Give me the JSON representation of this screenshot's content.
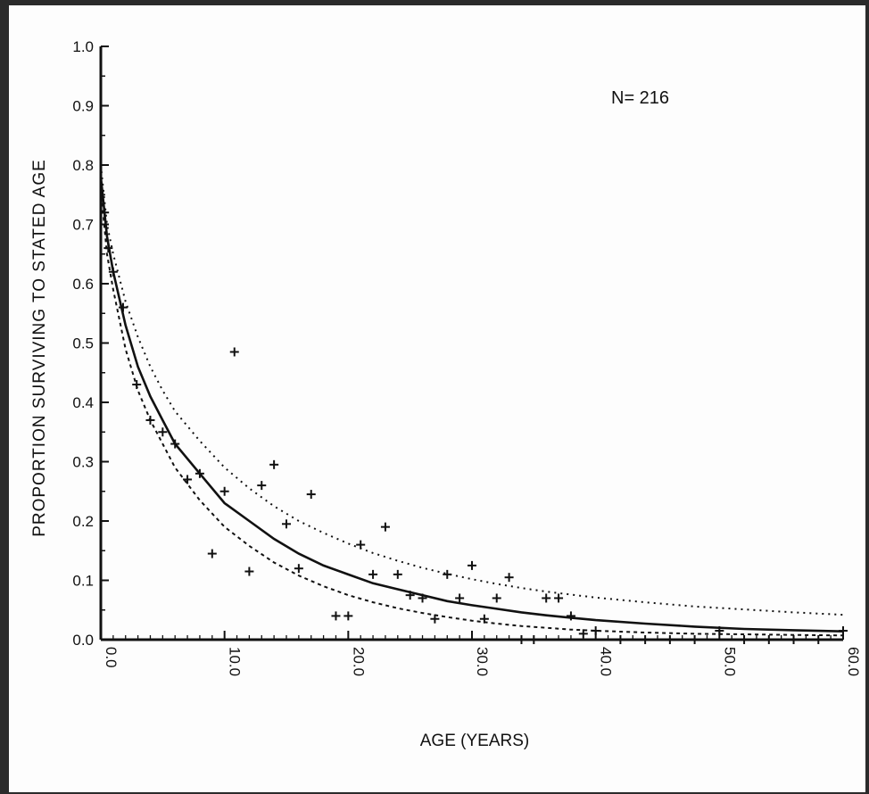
{
  "chart_data": {
    "type": "scatter",
    "title": "",
    "xlabel": "AGE (YEARS)",
    "ylabel": "PROPORTION SURVIVING TO STATED AGE",
    "annotation": "N= 216",
    "xlim": [
      0,
      60
    ],
    "ylim": [
      0,
      1.0
    ],
    "x_ticks": [
      "0.0",
      "10.0",
      "20.0",
      "30.0",
      "40.0",
      "50.0",
      "60.0"
    ],
    "y_ticks": [
      "0.0",
      "0.1",
      "0.2",
      "0.3",
      "0.4",
      "0.5",
      "0.6",
      "0.7",
      "0.8",
      "0.9",
      "1.0"
    ],
    "grid": false,
    "legend": "none",
    "series": [
      {
        "kind": "points",
        "x": [
          0.3,
          0.6,
          1.0,
          1.8,
          2.9,
          4.0,
          5.0,
          6.0,
          7.0,
          8.0,
          9.0,
          10.0,
          10.8,
          12.0,
          13.0,
          14.0,
          15.0,
          16.0,
          17.0,
          19.0,
          20.0,
          21.0,
          22.0,
          23.0,
          24.0,
          25.0,
          26.0,
          27.0,
          28.0,
          29.0,
          30.0,
          31.0,
          32.0,
          33.0,
          34.0,
          35.0,
          36.0,
          37.0,
          38.0,
          39.0,
          40.0,
          42.0,
          44.0,
          46.0,
          48.0,
          50.0,
          52.0,
          54.0,
          56.0,
          58.0,
          60.0
        ],
        "y": [
          0.72,
          0.66,
          0.62,
          0.56,
          0.43,
          0.37,
          0.35,
          0.33,
          0.27,
          0.28,
          0.145,
          0.25,
          0.485,
          0.115,
          0.26,
          0.295,
          0.195,
          0.12,
          0.245,
          0.04,
          0.04,
          0.16,
          0.11,
          0.19,
          0.11,
          0.075,
          0.07,
          0.035,
          0.11,
          0.07,
          0.125,
          0.035,
          0.07,
          0.105,
          0.0,
          0.0,
          0.07,
          0.07,
          0.04,
          0.01,
          0.015,
          0.0,
          0.0,
          0.0,
          0.0,
          0.015,
          0.0,
          0.0,
          0.0,
          0.0,
          0.015
        ]
      },
      {
        "kind": "fitted-curve",
        "style": "solid",
        "x": [
          0,
          0.5,
          1,
          2,
          3,
          4,
          5,
          6,
          8,
          10,
          12,
          14,
          16,
          18,
          20,
          22,
          24,
          26,
          28,
          30,
          32,
          34,
          36,
          38,
          40,
          44,
          48,
          52,
          56,
          60
        ],
        "y": [
          0.78,
          0.68,
          0.62,
          0.53,
          0.46,
          0.41,
          0.37,
          0.33,
          0.28,
          0.23,
          0.2,
          0.17,
          0.145,
          0.125,
          0.11,
          0.095,
          0.085,
          0.075,
          0.065,
          0.058,
          0.052,
          0.046,
          0.041,
          0.037,
          0.033,
          0.027,
          0.022,
          0.018,
          0.016,
          0.014
        ]
      },
      {
        "kind": "upper-bound",
        "style": "dotted",
        "x": [
          0,
          0.5,
          1,
          2,
          3,
          4,
          5,
          6,
          8,
          10,
          12,
          14,
          16,
          18,
          20,
          22,
          24,
          26,
          28,
          30,
          32,
          34,
          36,
          38,
          40,
          44,
          48,
          52,
          56,
          60
        ],
        "y": [
          0.8,
          0.7,
          0.65,
          0.57,
          0.51,
          0.46,
          0.42,
          0.385,
          0.335,
          0.29,
          0.255,
          0.225,
          0.2,
          0.18,
          0.162,
          0.146,
          0.133,
          0.121,
          0.111,
          0.102,
          0.094,
          0.087,
          0.081,
          0.076,
          0.071,
          0.063,
          0.056,
          0.051,
          0.046,
          0.042
        ]
      },
      {
        "kind": "lower-bound",
        "style": "dashed",
        "x": [
          0,
          0.5,
          1,
          2,
          3,
          4,
          5,
          6,
          8,
          10,
          12,
          14,
          16,
          18,
          20,
          22,
          24,
          26,
          28,
          30,
          32,
          34,
          36,
          38,
          40,
          44,
          48,
          52,
          56,
          60
        ],
        "y": [
          0.76,
          0.65,
          0.59,
          0.49,
          0.42,
          0.37,
          0.33,
          0.29,
          0.235,
          0.19,
          0.158,
          0.13,
          0.108,
          0.09,
          0.075,
          0.063,
          0.053,
          0.045,
          0.038,
          0.032,
          0.027,
          0.023,
          0.02,
          0.017,
          0.015,
          0.012,
          0.01,
          0.009,
          0.008,
          0.007
        ]
      }
    ]
  }
}
